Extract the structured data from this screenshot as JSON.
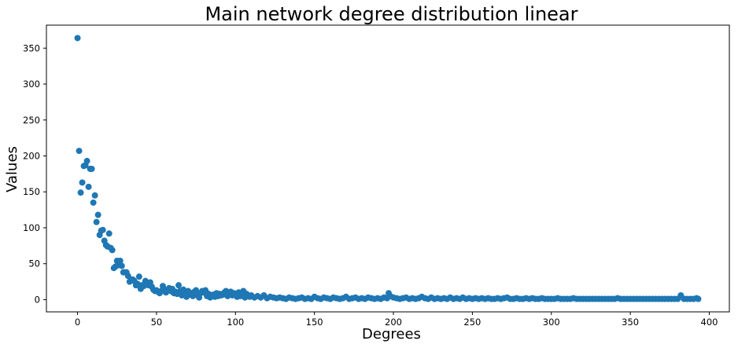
{
  "chart_data": {
    "type": "scatter",
    "title": "Main network degree distribution linear",
    "xlabel": "Degrees",
    "ylabel": "Values",
    "xlim": [
      -19.7,
      412.7
    ],
    "ylim": [
      -17,
      382
    ],
    "xticks": [
      0,
      50,
      100,
      150,
      200,
      250,
      300,
      350,
      400
    ],
    "yticks": [
      0,
      50,
      100,
      150,
      200,
      250,
      300,
      350
    ],
    "grid": false,
    "color": "#1f77b4",
    "series": [
      {
        "points": [
          [
            0,
            364
          ],
          [
            1,
            207
          ],
          [
            2,
            149
          ],
          [
            3,
            163
          ],
          [
            4,
            186
          ],
          [
            5,
            187
          ],
          [
            6,
            193
          ],
          [
            7,
            157
          ],
          [
            8,
            182
          ],
          [
            9,
            182
          ],
          [
            10,
            135
          ],
          [
            11,
            145
          ],
          [
            12,
            108
          ],
          [
            13,
            118
          ],
          [
            14,
            90
          ],
          [
            15,
            96
          ],
          [
            16,
            97
          ],
          [
            17,
            82
          ],
          [
            18,
            76
          ],
          [
            19,
            74
          ],
          [
            20,
            92
          ],
          [
            21,
            72
          ],
          [
            22,
            69
          ],
          [
            23,
            44
          ],
          [
            24,
            46
          ],
          [
            25,
            54
          ],
          [
            26,
            48
          ],
          [
            27,
            54
          ],
          [
            28,
            47
          ],
          [
            29,
            38
          ],
          [
            30,
            38
          ],
          [
            31,
            38
          ],
          [
            32,
            33
          ],
          [
            33,
            25
          ],
          [
            34,
            28
          ],
          [
            35,
            28
          ],
          [
            36,
            26
          ],
          [
            37,
            20
          ],
          [
            38,
            22
          ],
          [
            39,
            32
          ],
          [
            40,
            15
          ],
          [
            41,
            20
          ],
          [
            42,
            19
          ],
          [
            43,
            26
          ],
          [
            44,
            22
          ],
          [
            45,
            20
          ],
          [
            46,
            24
          ],
          [
            47,
            18
          ],
          [
            48,
            14
          ],
          [
            49,
            12
          ],
          [
            50,
            13
          ],
          [
            51,
            11
          ],
          [
            52,
            9
          ],
          [
            53,
            12
          ],
          [
            54,
            19
          ],
          [
            55,
            14
          ],
          [
            56,
            10
          ],
          [
            57,
            13
          ],
          [
            58,
            16
          ],
          [
            59,
            12
          ],
          [
            60,
            15
          ],
          [
            61,
            9
          ],
          [
            62,
            11
          ],
          [
            63,
            8
          ],
          [
            64,
            20
          ],
          [
            65,
            12
          ],
          [
            66,
            6
          ],
          [
            67,
            14
          ],
          [
            68,
            10
          ],
          [
            69,
            4
          ],
          [
            70,
            12
          ],
          [
            71,
            7
          ],
          [
            72,
            9
          ],
          [
            73,
            5
          ],
          [
            74,
            11
          ],
          [
            75,
            13
          ],
          [
            76,
            6
          ],
          [
            77,
            3
          ],
          [
            78,
            9
          ],
          [
            79,
            12
          ],
          [
            80,
            10
          ],
          [
            81,
            13
          ],
          [
            82,
            5
          ],
          [
            83,
            8
          ],
          [
            84,
            3
          ],
          [
            85,
            6
          ],
          [
            86,
            7
          ],
          [
            87,
            4
          ],
          [
            88,
            9
          ],
          [
            89,
            5
          ],
          [
            90,
            8
          ],
          [
            91,
            6
          ],
          [
            92,
            7
          ],
          [
            93,
            10
          ],
          [
            94,
            12
          ],
          [
            95,
            5
          ],
          [
            96,
            8
          ],
          [
            97,
            11
          ],
          [
            98,
            6
          ],
          [
            99,
            9
          ],
          [
            100,
            7
          ],
          [
            101,
            4
          ],
          [
            102,
            10
          ],
          [
            103,
            5
          ],
          [
            104,
            6
          ],
          [
            105,
            12
          ],
          [
            106,
            3
          ],
          [
            107,
            8
          ],
          [
            108,
            5
          ],
          [
            109,
            4
          ],
          [
            110,
            6
          ],
          [
            112,
            3
          ],
          [
            114,
            5
          ],
          [
            116,
            3
          ],
          [
            118,
            6
          ],
          [
            120,
            2
          ],
          [
            122,
            4
          ],
          [
            124,
            3
          ],
          [
            126,
            2
          ],
          [
            128,
            3
          ],
          [
            130,
            2
          ],
          [
            132,
            1
          ],
          [
            134,
            3
          ],
          [
            136,
            2
          ],
          [
            138,
            1
          ],
          [
            140,
            2
          ],
          [
            142,
            3
          ],
          [
            144,
            1
          ],
          [
            146,
            2
          ],
          [
            148,
            1
          ],
          [
            150,
            4
          ],
          [
            152,
            2
          ],
          [
            154,
            1
          ],
          [
            156,
            3
          ],
          [
            158,
            2
          ],
          [
            160,
            1
          ],
          [
            162,
            3
          ],
          [
            164,
            2
          ],
          [
            166,
            1
          ],
          [
            168,
            2
          ],
          [
            170,
            4
          ],
          [
            172,
            1
          ],
          [
            174,
            2
          ],
          [
            176,
            3
          ],
          [
            178,
            1
          ],
          [
            180,
            2
          ],
          [
            182,
            1
          ],
          [
            184,
            3
          ],
          [
            186,
            2
          ],
          [
            188,
            1
          ],
          [
            190,
            2
          ],
          [
            192,
            1
          ],
          [
            194,
            3
          ],
          [
            196,
            2
          ],
          [
            197,
            9
          ],
          [
            198,
            5
          ],
          [
            200,
            3
          ],
          [
            202,
            2
          ],
          [
            204,
            1
          ],
          [
            206,
            2
          ],
          [
            208,
            3
          ],
          [
            210,
            1
          ],
          [
            212,
            2
          ],
          [
            214,
            1
          ],
          [
            216,
            2
          ],
          [
            218,
            4
          ],
          [
            220,
            2
          ],
          [
            222,
            1
          ],
          [
            224,
            3
          ],
          [
            226,
            1
          ],
          [
            228,
            2
          ],
          [
            230,
            1
          ],
          [
            232,
            2
          ],
          [
            234,
            1
          ],
          [
            236,
            3
          ],
          [
            238,
            1
          ],
          [
            240,
            2
          ],
          [
            242,
            1
          ],
          [
            244,
            3
          ],
          [
            246,
            1
          ],
          [
            248,
            2
          ],
          [
            250,
            1
          ],
          [
            252,
            2
          ],
          [
            254,
            1
          ],
          [
            256,
            2
          ],
          [
            258,
            1
          ],
          [
            260,
            2
          ],
          [
            262,
            1
          ],
          [
            264,
            1
          ],
          [
            266,
            2
          ],
          [
            268,
            1
          ],
          [
            270,
            2
          ],
          [
            272,
            3
          ],
          [
            274,
            1
          ],
          [
            276,
            1
          ],
          [
            278,
            2
          ],
          [
            280,
            1
          ],
          [
            282,
            1
          ],
          [
            284,
            2
          ],
          [
            286,
            1
          ],
          [
            288,
            2
          ],
          [
            290,
            1
          ],
          [
            292,
            1
          ],
          [
            294,
            2
          ],
          [
            296,
            1
          ],
          [
            298,
            1
          ],
          [
            300,
            1
          ],
          [
            302,
            1
          ],
          [
            304,
            2
          ],
          [
            306,
            1
          ],
          [
            308,
            1
          ],
          [
            310,
            1
          ],
          [
            312,
            1
          ],
          [
            314,
            2
          ],
          [
            316,
            1
          ],
          [
            318,
            1
          ],
          [
            320,
            1
          ],
          [
            322,
            1
          ],
          [
            324,
            1
          ],
          [
            326,
            1
          ],
          [
            328,
            1
          ],
          [
            330,
            1
          ],
          [
            332,
            1
          ],
          [
            334,
            1
          ],
          [
            336,
            1
          ],
          [
            338,
            1
          ],
          [
            340,
            1
          ],
          [
            342,
            2
          ],
          [
            344,
            1
          ],
          [
            346,
            1
          ],
          [
            348,
            1
          ],
          [
            350,
            1
          ],
          [
            352,
            1
          ],
          [
            354,
            1
          ],
          [
            356,
            1
          ],
          [
            358,
            1
          ],
          [
            360,
            1
          ],
          [
            362,
            1
          ],
          [
            364,
            1
          ],
          [
            366,
            1
          ],
          [
            368,
            1
          ],
          [
            370,
            1
          ],
          [
            372,
            1
          ],
          [
            374,
            1
          ],
          [
            376,
            1
          ],
          [
            378,
            1
          ],
          [
            380,
            1
          ],
          [
            382,
            6
          ],
          [
            384,
            1
          ],
          [
            386,
            1
          ],
          [
            388,
            1
          ],
          [
            390,
            1
          ],
          [
            392,
            2
          ],
          [
            393,
            1
          ]
        ]
      }
    ]
  }
}
